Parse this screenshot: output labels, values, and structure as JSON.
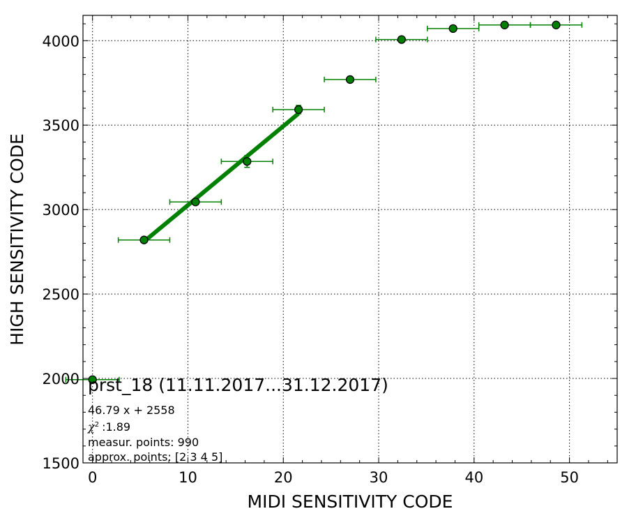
{
  "chart_data": {
    "type": "scatter",
    "title": "",
    "xlabel": "MIDI SENSITIVITY CODE",
    "ylabel": "HIGH SENSITIVITY CODE",
    "xlim": [
      -1,
      55
    ],
    "ylim": [
      1500,
      4150
    ],
    "x_ticks": [
      0,
      10,
      20,
      30,
      40,
      50
    ],
    "y_ticks": [
      1500,
      2000,
      2500,
      3000,
      3500,
      4000
    ],
    "grid": true,
    "colors": {
      "series": "#008000",
      "fit": "#008000",
      "marker_edge": "#000000"
    },
    "series": [
      {
        "marker": "circle",
        "points": [
          {
            "x": 0.0,
            "y": 1993,
            "xerr": 2.8,
            "yerr": 0
          },
          {
            "x": 5.4,
            "y": 2820,
            "xerr": 2.7,
            "yerr": 0
          },
          {
            "x": 10.8,
            "y": 3045,
            "xerr": 2.7,
            "yerr": 0
          },
          {
            "x": 16.2,
            "y": 3285,
            "xerr": 2.7,
            "yerr": 35
          },
          {
            "x": 21.6,
            "y": 3592,
            "xerr": 2.7,
            "yerr": 25
          },
          {
            "x": 27.0,
            "y": 3770,
            "xerr": 2.7,
            "yerr": 15
          },
          {
            "x": 32.4,
            "y": 4007,
            "xerr": 2.7,
            "yerr": 0
          },
          {
            "x": 37.8,
            "y": 4072,
            "xerr": 2.7,
            "yerr": 0
          },
          {
            "x": 43.2,
            "y": 4093,
            "xerr": 2.7,
            "yerr": 0
          },
          {
            "x": 48.6,
            "y": 4093,
            "xerr": 2.7,
            "yerr": 0
          }
        ]
      }
    ],
    "fit_line": {
      "slope": 46.79,
      "intercept": 2558,
      "x_range": [
        5.4,
        21.6
      ]
    },
    "annotations": {
      "title": "prst_18 (11.11.2017...31.12.2017)",
      "equation": "46.79 x + 2558",
      "chi2": ":1.89",
      "measur_points": "measur. points: 990",
      "approx_points": "approx. points: [2 3 4 5]"
    }
  }
}
